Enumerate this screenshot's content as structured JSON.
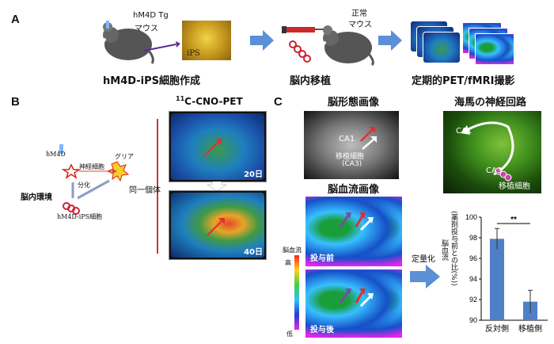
{
  "panel_a": {
    "letter": "A",
    "mouse_label_line1": "hM4D Tg",
    "mouse_label_line2": "マウス",
    "ips_label": "iPS",
    "normal_mouse_line1": "正常",
    "normal_mouse_line2": "マウス",
    "step1": "hM4D-iPS細胞作成",
    "step2": "脳内移植",
    "step3": "定期的PET/fMRI撮影"
  },
  "panel_b": {
    "letter": "B",
    "title_super": "11",
    "title": "C-CNO-PET",
    "hm4d": "hM4D",
    "neuron": "神経細胞",
    "glia": "グリア",
    "diff": "分化",
    "env": "脳内環境",
    "cells": "hM4D-iPS細胞",
    "same": "同一個体",
    "day1": "20日",
    "day2": "40日"
  },
  "panel_c": {
    "letter": "C",
    "morph_title": "脳形態画像",
    "hipp_title": "海馬の神経回路",
    "ca1": "CA1",
    "ca3": "CA3",
    "transplant": "移植細胞",
    "transplant_ca3": "(CA3)",
    "blood_title": "脳血流画像",
    "cbf_label": "脳血流",
    "high": "高",
    "low": "低",
    "before": "投与前",
    "after": "投与後",
    "quant": "定量化",
    "hipp_ca1": "CA1",
    "hipp_ca3": "CA3",
    "hipp_cells": "移植細胞"
  },
  "chart_data": {
    "type": "bar",
    "categories": [
      "反対側",
      "移植側"
    ],
    "values": [
      97.9,
      91.8
    ],
    "errors": [
      1.0,
      1.1
    ],
    "ylabel": "脳血流\n(薬剤投与前との比(%))",
    "ylabel_line1": "脳血流",
    "ylabel_line2": "(薬剤投与前との比(%))",
    "ylim": [
      90,
      100
    ],
    "ticks": [
      "100",
      "98",
      "96",
      "94",
      "92",
      "90"
    ],
    "significance": "**",
    "bar_color": "#4f7fc7"
  }
}
